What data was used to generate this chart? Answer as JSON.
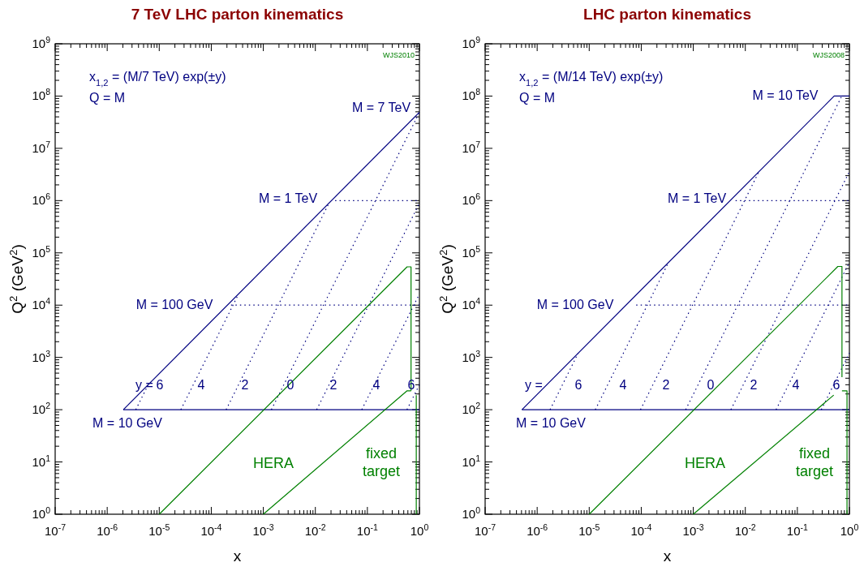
{
  "chart_data": [
    {
      "type": "line",
      "title": "7 TeV LHC parton kinematics",
      "xlabel": "x",
      "ylabel": "Q$^{2}$  (GeV$^{2}$)",
      "log": "xy",
      "xlim": [
        1e-07,
        1
      ],
      "ylim": [
        1,
        1000000000.0
      ],
      "xticks": [
        {
          "value": 1e-07,
          "label": "10$^{-7}$"
        },
        {
          "value": 1e-06,
          "label": "10$^{-6}$"
        },
        {
          "value": 1e-05,
          "label": "10$^{-5}$"
        },
        {
          "value": 0.0001,
          "label": "10$^{-4}$"
        },
        {
          "value": 0.001,
          "label": "10$^{-3}$"
        },
        {
          "value": 0.01,
          "label": "10$^{-2}$"
        },
        {
          "value": 0.1,
          "label": "10$^{-1}$"
        },
        {
          "value": 1,
          "label": "10$^{0}$"
        }
      ],
      "yticks": [
        {
          "value": 1,
          "label": "10$^{0}$"
        },
        {
          "value": 10,
          "label": "10$^{1}$"
        },
        {
          "value": 100,
          "label": "10$^{2}$"
        },
        {
          "value": 1000,
          "label": "10$^{3}$"
        },
        {
          "value": 10000.0,
          "label": "10$^{4}$"
        },
        {
          "value": 100000.0,
          "label": "10$^{5}$"
        },
        {
          "value": 1000000.0,
          "label": "10$^{6}$"
        },
        {
          "value": 10000000.0,
          "label": "10$^{7}$"
        },
        {
          "value": 100000000.0,
          "label": "10$^{8}$"
        },
        {
          "value": 1000000000.0,
          "label": "10$^{9}$"
        }
      ],
      "series": [
        {
          "color": "#000080",
          "line_style": "solid",
          "x": [
            2.04e-06,
            1
          ],
          "values": [
            100,
            49000000.0
          ]
        },
        {
          "color": "#000080",
          "line_style": "solid",
          "x": [
            2.04e-06,
            1
          ],
          "values": [
            100,
            100
          ]
        },
        {
          "color": "#000080",
          "line_style": "dotted",
          "x": [
            0.00024,
            1
          ],
          "values": [
            10000.0,
            10000.0
          ]
        },
        {
          "color": "#000080",
          "line_style": "dotted",
          "x": [
            0.024,
            1
          ],
          "values": [
            1000000.0,
            1000000.0
          ]
        },
        {
          "color": "#000080",
          "line_style": "dotted",
          "x": [
            0.00143,
            1
          ],
          "values": [
            100,
            49000000.0
          ]
        },
        {
          "color": "#000080",
          "line_style": "dotted",
          "x": [
            0.0106,
            1
          ],
          "values": [
            100,
            897000.0
          ]
        },
        {
          "color": "#000080",
          "line_style": "dotted",
          "x": [
            0.078,
            1
          ],
          "values": [
            100,
            16400.0
          ]
        },
        {
          "color": "#000080",
          "line_style": "dotted",
          "x": [
            0.576,
            1
          ],
          "values": [
            100,
            301
          ]
        },
        {
          "color": "#000080",
          "line_style": "dotted",
          "x": [
            0.000193,
            0.0183
          ],
          "values": [
            100,
            897000.0
          ]
        },
        {
          "color": "#000080",
          "line_style": "dotted",
          "x": [
            2.6e-05,
            0.000335
          ],
          "values": [
            100,
            16400.0
          ]
        },
        {
          "color": "#000080",
          "line_style": "dotted",
          "x": [
            3.54e-06,
            6.14e-06
          ],
          "values": [
            100,
            301
          ]
        },
        {
          "color": "#008000",
          "line_style": "solid",
          "x": [
            1e-05,
            0.58,
            0.69,
            0.69
          ],
          "values": [
            1,
            54000.0,
            54000.0,
            230
          ]
        },
        {
          "color": "#008000",
          "line_style": "solid",
          "x": [
            0.001,
            0.58,
            0.69
          ],
          "values": [
            1,
            230,
            230
          ]
        },
        {
          "color": "#008000",
          "line_style": "solid",
          "x": [
            0.87,
            0.87
          ],
          "values": [
            190,
            1
          ]
        }
      ],
      "annotations": [
        "x$_{1,2}$ = (M/7 TeV) exp(±y)",
        "Q = M",
        "WJS2010",
        "M = 7 TeV",
        "M = 1 TeV",
        "M = 100 GeV",
        "M = 10 GeV",
        "y =",
        "6",
        "4",
        "2",
        "0",
        "2",
        "4",
        "6",
        "HERA",
        "fixed target"
      ]
    },
    {
      "type": "line",
      "title": "LHC parton kinematics",
      "xlabel": "x",
      "ylabel": "Q$^{2}$  (GeV$^{2}$)",
      "log": "xy",
      "xlim": [
        1e-07,
        1
      ],
      "ylim": [
        1,
        1000000000.0
      ],
      "xticks": [
        {
          "value": 1e-07,
          "label": "10$^{-7}$"
        },
        {
          "value": 1e-06,
          "label": "10$^{-6}$"
        },
        {
          "value": 1e-05,
          "label": "10$^{-5}$"
        },
        {
          "value": 0.0001,
          "label": "10$^{-4}$"
        },
        {
          "value": 0.001,
          "label": "10$^{-3}$"
        },
        {
          "value": 0.01,
          "label": "10$^{-2}$"
        },
        {
          "value": 0.1,
          "label": "10$^{-1}$"
        },
        {
          "value": 1,
          "label": "10$^{0}$"
        }
      ],
      "yticks": [
        {
          "value": 1,
          "label": "10$^{0}$"
        },
        {
          "value": 10,
          "label": "10$^{1}$"
        },
        {
          "value": 100,
          "label": "10$^{2}$"
        },
        {
          "value": 1000,
          "label": "10$^{3}$"
        },
        {
          "value": 10000.0,
          "label": "10$^{4}$"
        },
        {
          "value": 100000.0,
          "label": "10$^{5}$"
        },
        {
          "value": 1000000.0,
          "label": "10$^{6}$"
        },
        {
          "value": 10000000.0,
          "label": "10$^{7}$"
        },
        {
          "value": 100000000.0,
          "label": "10$^{8}$"
        },
        {
          "value": 1000000000.0,
          "label": "10$^{9}$"
        }
      ],
      "series": [
        {
          "color": "#000080",
          "line_style": "solid",
          "x": [
            5.1e-07,
            0.51,
            1
          ],
          "values": [
            100,
            100000000.0,
            100000000.0
          ]
        },
        {
          "color": "#000080",
          "line_style": "solid",
          "x": [
            5.1e-07,
            1
          ],
          "values": [
            100,
            100
          ]
        },
        {
          "color": "#000080",
          "line_style": "dotted",
          "x": [
            8e-05,
            1
          ],
          "values": [
            10000.0,
            10000.0
          ]
        },
        {
          "color": "#000080",
          "line_style": "dotted",
          "x": [
            0.0065,
            1
          ],
          "values": [
            1000000.0,
            1000000.0
          ]
        },
        {
          "color": "#000080",
          "line_style": "dotted",
          "x": [
            0.000714,
            0.714
          ],
          "values": [
            100,
            100000000.0
          ]
        },
        {
          "color": "#000080",
          "line_style": "dotted",
          "x": [
            0.00528,
            1
          ],
          "values": [
            100,
            3590000.0
          ]
        },
        {
          "color": "#000080",
          "line_style": "dotted",
          "x": [
            0.039,
            1
          ],
          "values": [
            100,
            66000.0
          ]
        },
        {
          "color": "#000080",
          "line_style": "dotted",
          "x": [
            0.288,
            1
          ],
          "values": [
            100,
            1210
          ]
        },
        {
          "color": "#000080",
          "line_style": "dotted",
          "x": [
            9.67e-05,
            0.0183
          ],
          "values": [
            100,
            3590000.0
          ]
        },
        {
          "color": "#000080",
          "line_style": "dotted",
          "x": [
            1.31e-05,
            0.000335
          ],
          "values": [
            100,
            66000.0
          ]
        },
        {
          "color": "#000080",
          "line_style": "dotted",
          "x": [
            1.77e-06,
            6.14e-06
          ],
          "values": [
            100,
            1210
          ]
        },
        {
          "color": "#008000",
          "line_style": "solid",
          "x": [
            1e-05,
            0.6,
            0.72,
            0.72
          ],
          "values": [
            1,
            55000.0,
            55000.0,
            420
          ]
        },
        {
          "color": "#008000",
          "line_style": "solid",
          "x": [
            0.001,
            0.5
          ],
          "values": [
            1,
            190
          ]
        },
        {
          "color": "#008000",
          "line_style": "solid",
          "x": [
            0.72,
            0.9,
            0.9
          ],
          "values": [
            230,
            230,
            1
          ]
        }
      ],
      "annotations": [
        "x$_{1,2}$ = (M/14 TeV) exp(±y)",
        "Q = M",
        "WJS2008",
        "M = 10 TeV",
        "M = 1 TeV",
        "M = 100 GeV",
        "M = 10 GeV",
        "y =",
        "6",
        "4",
        "2",
        "0",
        "2",
        "4",
        "6",
        "HERA",
        "fixed target"
      ]
    }
  ]
}
